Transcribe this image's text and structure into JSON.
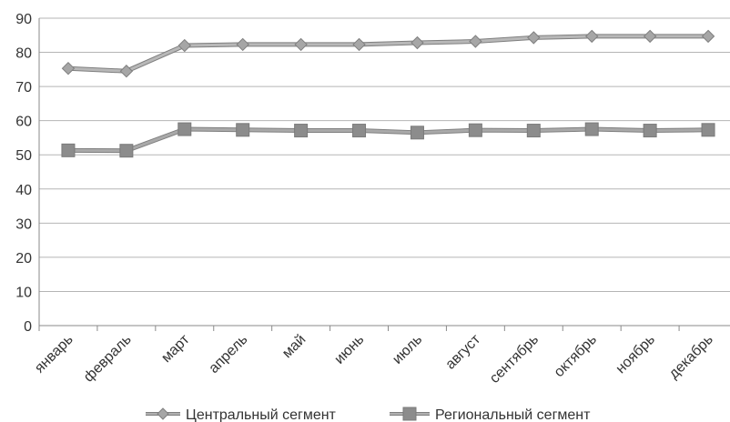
{
  "chart_data": {
    "type": "line",
    "title": "",
    "xlabel": "",
    "ylabel": "",
    "ylim": [
      0,
      90
    ],
    "yticks": [
      0,
      10,
      20,
      30,
      40,
      50,
      60,
      70,
      80,
      90
    ],
    "grid": true,
    "legend_position": "bottom",
    "categories": [
      "январь",
      "февраль",
      "март",
      "апрель",
      "май",
      "июнь",
      "июль",
      "август",
      "сентябрь",
      "октябрь",
      "ноябрь",
      "декабрь"
    ],
    "series": [
      {
        "name": "Центральный сегмент",
        "marker": "diamond",
        "color": "#a6a6a6",
        "values": [
          75.3,
          74.5,
          82.0,
          82.3,
          82.3,
          82.3,
          82.8,
          83.2,
          84.3,
          84.7,
          84.7,
          84.7
        ]
      },
      {
        "name": "Региональный сегмент",
        "marker": "square",
        "color": "#8c8c8c",
        "values": [
          51.3,
          51.2,
          57.5,
          57.3,
          57.1,
          57.1,
          56.5,
          57.2,
          57.1,
          57.5,
          57.1,
          57.3
        ]
      }
    ]
  }
}
